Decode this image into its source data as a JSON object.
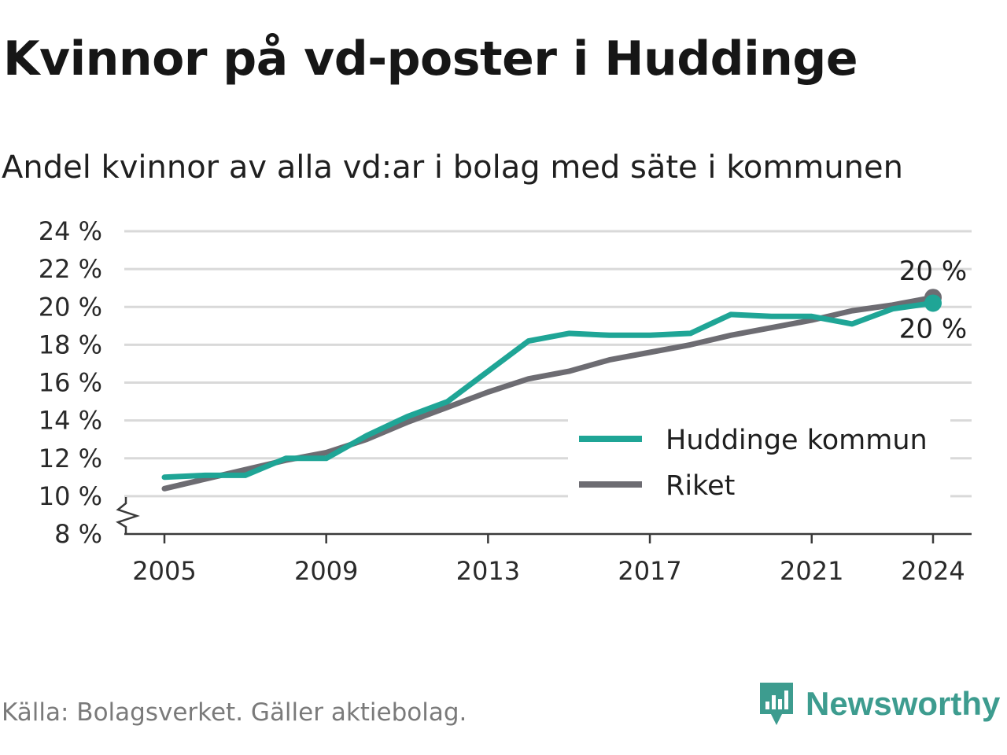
{
  "header": {
    "title": "Kvinnor på vd-poster i Huddinge",
    "subtitle": "Andel kvinnor av alla vd:ar i bolag med säte i kommunen"
  },
  "footer": {
    "source": "Källa: Bolagsverket. Gäller aktiebolag.",
    "brand": "Newsworthy"
  },
  "colors": {
    "huddinge": "#1fa596",
    "riket": "#6d6c72",
    "grid": "#d9d9d9",
    "brand": "#3d9c8f"
  },
  "chart_data": {
    "type": "line",
    "title": "",
    "xlabel": "",
    "ylabel": "",
    "y_unit_suffix": " %",
    "ylim": [
      8,
      24
    ],
    "y_ticks": [
      8,
      10,
      12,
      14,
      16,
      18,
      20,
      22,
      24
    ],
    "y_tick_labels": [
      "8 %",
      "10 %",
      "12 %",
      "14 %",
      "16 %",
      "18 %",
      "20 %",
      "22 %",
      "24 %"
    ],
    "xlim": [
      2005,
      2024
    ],
    "x_ticks": [
      2005,
      2009,
      2013,
      2017,
      2021,
      2024
    ],
    "x_tick_labels": [
      "2005",
      "2009",
      "2013",
      "2017",
      "2021",
      "2024"
    ],
    "axis_break": true,
    "grid": true,
    "legend_position": "bottom-right",
    "x": [
      2005,
      2006,
      2007,
      2008,
      2009,
      2010,
      2011,
      2012,
      2013,
      2014,
      2015,
      2016,
      2017,
      2018,
      2019,
      2020,
      2021,
      2022,
      2023,
      2024
    ],
    "series": [
      {
        "name": "Huddinge kommun",
        "color": "#1fa596",
        "values": [
          11.0,
          11.1,
          11.1,
          12.0,
          12.0,
          13.2,
          14.2,
          15.0,
          16.6,
          18.2,
          18.6,
          18.5,
          18.5,
          18.6,
          19.6,
          19.5,
          19.5,
          19.1,
          19.9,
          20.2
        ],
        "end_label": "20 %"
      },
      {
        "name": "Riket",
        "color": "#6d6c72",
        "values": [
          10.4,
          10.9,
          11.4,
          11.9,
          12.3,
          13.0,
          13.9,
          14.7,
          15.5,
          16.2,
          16.6,
          17.2,
          17.6,
          18.0,
          18.5,
          18.9,
          19.3,
          19.8,
          20.1,
          20.5
        ],
        "end_label": "20 %"
      }
    ]
  }
}
